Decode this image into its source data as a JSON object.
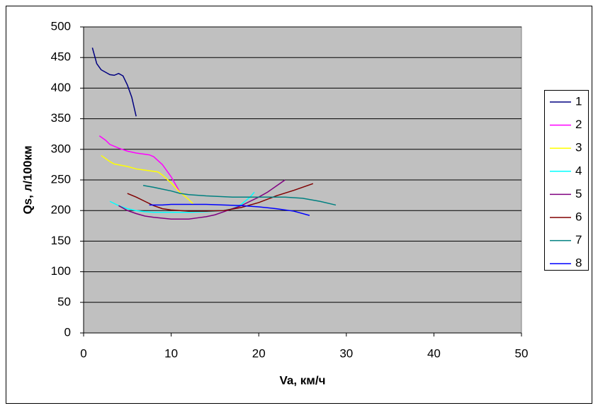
{
  "chart_data": {
    "type": "line",
    "xlabel": "Va, км/ч",
    "ylabel": "Qs, л/100км",
    "xlim": [
      0,
      50
    ],
    "xticks": [
      0,
      10,
      20,
      30,
      40,
      50
    ],
    "ylim": [
      0,
      500
    ],
    "yticks": [
      0,
      50,
      100,
      150,
      200,
      250,
      300,
      350,
      400,
      450,
      500
    ],
    "grid": true,
    "legend": "right",
    "series": [
      {
        "name": "1",
        "color": "#000080",
        "x": [
          1,
          1.5,
          2,
          3,
          3.5,
          4,
          4.5,
          5,
          5.5,
          6
        ],
        "values": [
          466,
          440,
          430,
          422,
          421,
          424,
          420,
          405,
          385,
          354
        ]
      },
      {
        "name": "2",
        "color": "#ff00ff",
        "x": [
          1.8,
          2.5,
          3,
          4,
          5,
          6,
          6.5,
          7.5,
          8,
          9,
          10,
          11
        ],
        "values": [
          322,
          315,
          308,
          302,
          297,
          294,
          293,
          291,
          288,
          275,
          255,
          230
        ]
      },
      {
        "name": "3",
        "color": "#ffff00",
        "x": [
          2,
          3,
          3.5,
          5,
          6,
          7,
          8.5,
          9,
          10,
          11,
          12,
          12.5
        ],
        "values": [
          290,
          280,
          276,
          272,
          268,
          266,
          263,
          258,
          245,
          230,
          218,
          211
        ]
      },
      {
        "name": "4",
        "color": "#00ffff",
        "x": [
          3,
          4,
          5,
          6,
          7,
          8,
          10,
          12,
          14,
          16,
          17,
          18,
          19,
          19.5
        ],
        "values": [
          215,
          208,
          203,
          200,
          198,
          197,
          197,
          197,
          198,
          200,
          203,
          210,
          222,
          230
        ]
      },
      {
        "name": "5",
        "color": "#800080",
        "x": [
          4,
          5,
          6,
          7,
          8,
          10,
          12,
          13,
          14,
          15,
          16,
          17,
          18,
          19,
          20,
          21,
          22,
          23
        ],
        "values": [
          208,
          200,
          195,
          191,
          189,
          186,
          186,
          188,
          190,
          193,
          198,
          203,
          208,
          215,
          222,
          230,
          240,
          250
        ]
      },
      {
        "name": "6",
        "color": "#800000",
        "x": [
          5,
          6,
          7,
          8,
          9,
          10,
          12,
          14,
          16,
          18,
          20,
          22,
          24,
          26.2
        ],
        "values": [
          228,
          222,
          215,
          208,
          203,
          201,
          199,
          199,
          200,
          205,
          213,
          224,
          233,
          244
        ]
      },
      {
        "name": "7",
        "color": "#008080",
        "x": [
          6.8,
          8,
          9,
          10,
          11,
          12,
          14,
          17,
          20,
          23,
          25,
          27,
          28.8
        ],
        "values": [
          241,
          238,
          235,
          232,
          228,
          226,
          224,
          222,
          222,
          222,
          220,
          215,
          209
        ]
      },
      {
        "name": "8",
        "color": "#0000ff",
        "x": [
          7.5,
          9,
          10,
          12,
          14,
          16,
          18,
          20,
          22,
          24,
          25.8
        ],
        "values": [
          209,
          209,
          210,
          210,
          210,
          209,
          208,
          206,
          203,
          199,
          192
        ]
      }
    ]
  }
}
